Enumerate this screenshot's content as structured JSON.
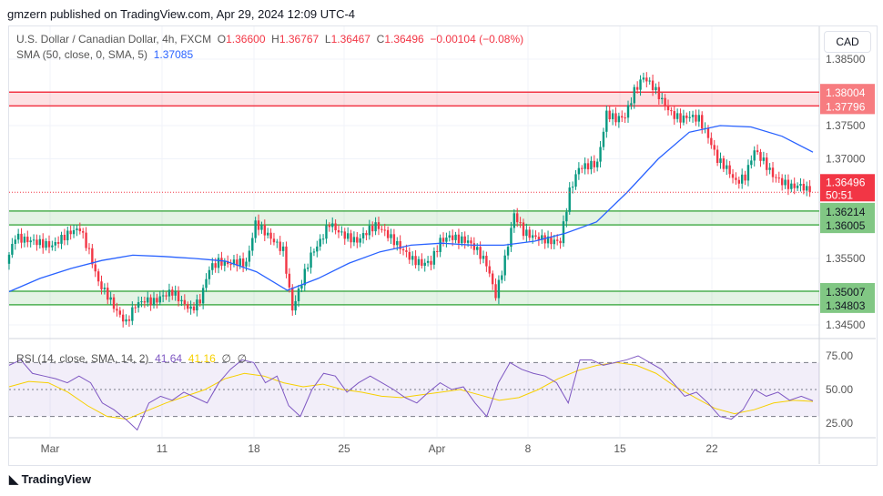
{
  "header": {
    "published": "gmzern published on TradingView.com, Apr 29, 2024 12:09 UTC-4"
  },
  "legend": {
    "symbol": "U.S. Dollar / Canadian Dollar, 4h, FXCM",
    "o_label": "O",
    "o": "1.36600",
    "h_label": "H",
    "h": "1.36767",
    "l_label": "L",
    "l": "1.36467",
    "c_label": "C",
    "c": "1.36496",
    "change": "−0.00104 (−0.08%)",
    "sma_label": "SMA (50, close, 0, SMA, 5)",
    "sma_value": "1.37085"
  },
  "rsi_legend": {
    "label": "RSI (14, close, SMA, 14, 2)",
    "rsi": "41.64",
    "rsi_sma": "41.16",
    "d1": "∅",
    "d2": "∅"
  },
  "currency_button": "CAD",
  "footer": {
    "logo_text": "TradingView"
  },
  "colors": {
    "up": "#089981",
    "down": "#f23645",
    "sma": "#2962ff",
    "rsi": "#7e57c2",
    "rsi_sma": "#f7d000",
    "resistance": "#f23645",
    "support": "#4caf50"
  },
  "chart_data": {
    "type": "candlestick",
    "price_axis": {
      "ylim": [
        1.344,
        1.3865
      ],
      "ticks": [
        "1.38500",
        "1.37500",
        "1.37000",
        "1.35500",
        "1.34500"
      ]
    },
    "x_ticks": [
      "Mar",
      "11",
      "18",
      "25",
      "Apr",
      "8",
      "15",
      "22"
    ],
    "zones": [
      {
        "top": 1.38004,
        "bottom": 1.37796,
        "kind": "resistance",
        "labels": [
          "1.38004",
          "1.37796"
        ]
      },
      {
        "top": 1.36214,
        "bottom": 1.36005,
        "kind": "support",
        "labels": [
          "1.36214",
          "1.36005"
        ]
      },
      {
        "top": 1.35007,
        "bottom": 1.34803,
        "kind": "support",
        "labels": [
          "1.35007",
          "1.34803"
        ]
      }
    ],
    "last_price": {
      "value": 1.36496,
      "label": "1.36496",
      "countdown": "50:51"
    },
    "closes": [
      1.3542,
      1.3583,
      1.3578,
      1.3576,
      1.3572,
      1.3569,
      1.358,
      1.359,
      1.3595,
      1.356,
      1.3514,
      1.3494,
      1.347,
      1.3453,
      1.348,
      1.3487,
      1.3485,
      1.3494,
      1.35,
      1.3485,
      1.3473,
      1.3487,
      1.3535,
      1.3545,
      1.3542,
      1.3545,
      1.3542,
      1.3603,
      1.359,
      1.3576,
      1.3562,
      1.3473,
      1.3515,
      1.3555,
      1.3576,
      1.3603,
      1.359,
      1.3582,
      1.3576,
      1.359,
      1.36,
      1.359,
      1.3576,
      1.3562,
      1.3548,
      1.3542,
      1.3545,
      1.3576,
      1.3583,
      1.3579,
      1.3576,
      1.3562,
      1.3542,
      1.3494,
      1.3549,
      1.3617,
      1.359,
      1.3583,
      1.358,
      1.3576,
      1.3576,
      1.3651,
      1.3686,
      1.369,
      1.3693,
      1.3768,
      1.376,
      1.3764,
      1.3802,
      1.3823,
      1.3809,
      1.3788,
      1.3768,
      1.376,
      1.3764,
      1.376,
      1.3733,
      1.3699,
      1.3686,
      1.3665,
      1.3673,
      1.3713,
      1.3696,
      1.3675,
      1.3665,
      1.3658,
      1.366,
      1.365
    ],
    "sma": [
      1.35,
      1.352,
      1.3535,
      1.3547,
      1.3555,
      1.3553,
      1.355,
      1.3546,
      1.353,
      1.3502,
      1.352,
      1.3543,
      1.356,
      1.357,
      1.3573,
      1.357,
      1.357,
      1.3576,
      1.3588,
      1.3605,
      1.365,
      1.37,
      1.374,
      1.375,
      1.3748,
      1.3734,
      1.371
    ],
    "rsi": {
      "ylim": [
        10,
        90
      ],
      "ticks": [
        "75.00",
        "50.00",
        "25.00"
      ],
      "values": [
        68,
        72,
        62,
        60,
        58,
        55,
        60,
        55,
        40,
        35,
        28,
        20,
        40,
        45,
        42,
        48,
        44,
        40,
        55,
        65,
        72,
        70,
        55,
        60,
        38,
        30,
        50,
        62,
        60,
        48,
        55,
        60,
        55,
        50,
        44,
        40,
        48,
        55,
        50,
        52,
        40,
        30,
        55,
        70,
        65,
        62,
        60,
        55,
        40,
        72,
        72,
        68,
        70,
        72,
        75,
        70,
        65,
        55,
        45,
        48,
        40,
        30,
        28,
        35,
        50,
        45,
        48,
        42,
        45,
        41.64
      ],
      "sma_values": [
        52,
        56,
        55,
        48,
        38,
        30,
        28,
        34,
        40,
        45,
        50,
        58,
        62,
        60,
        55,
        52,
        54,
        50,
        48,
        45,
        44,
        46,
        48,
        50,
        46,
        42,
        44,
        50,
        58,
        64,
        68,
        70,
        68,
        62,
        52,
        44,
        36,
        32,
        35,
        40,
        42,
        41.16
      ]
    }
  }
}
